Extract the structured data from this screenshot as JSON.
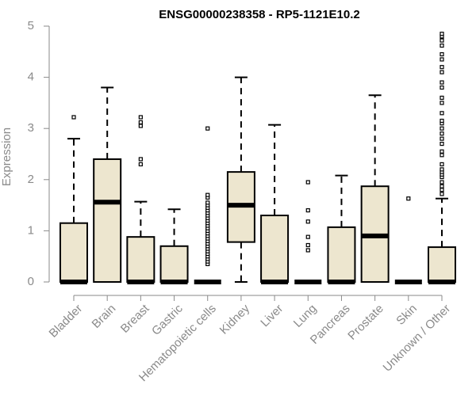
{
  "chart_data": {
    "type": "boxplot",
    "title": "ENSG00000238358 - RP5-1121E10.2",
    "xlabel": "",
    "ylabel": "Expression",
    "ylim": [
      0,
      5
    ],
    "yticks": [
      0,
      1,
      2,
      3,
      4,
      5
    ],
    "grid": false,
    "colors": {
      "box_fill": "#ede6cf",
      "box_stroke": "#000000",
      "axis": "#8a8a8a",
      "title": "#000000"
    },
    "categories": [
      "Bladder",
      "Brain",
      "Breast",
      "Gastric",
      "Hematopoietic cells",
      "Kidney",
      "Liver",
      "Lung",
      "Pancreas",
      "Prostate",
      "Skin",
      "Unknown / Other"
    ],
    "boxes": [
      {
        "category": "Bladder",
        "q1": 0,
        "median": 0,
        "q3": 1.15,
        "whisker_low": 0,
        "whisker_high": 2.8,
        "outliers": [
          3.22
        ]
      },
      {
        "category": "Brain",
        "q1": 0,
        "median": 1.56,
        "q3": 2.4,
        "whisker_low": 0,
        "whisker_high": 3.8,
        "outliers": []
      },
      {
        "category": "Breast",
        "q1": 0,
        "median": 0,
        "q3": 0.88,
        "whisker_low": 0,
        "whisker_high": 1.57,
        "outliers": [
          2.3,
          2.4,
          3.05,
          3.12,
          3.22
        ]
      },
      {
        "category": "Gastric",
        "q1": 0,
        "median": 0,
        "q3": 0.7,
        "whisker_low": 0,
        "whisker_high": 1.42,
        "outliers": []
      },
      {
        "category": "Hematopoietic cells",
        "q1": 0,
        "median": 0,
        "q3": 0,
        "whisker_low": 0,
        "whisker_high": 0,
        "outliers": [
          0.35,
          0.4,
          0.45,
          0.5,
          0.55,
          0.6,
          0.65,
          0.7,
          0.75,
          0.8,
          0.85,
          0.9,
          0.95,
          1.0,
          1.05,
          1.1,
          1.15,
          1.2,
          1.25,
          1.3,
          1.35,
          1.4,
          1.45,
          1.5,
          1.55,
          1.65,
          1.7,
          3.0
        ]
      },
      {
        "category": "Kidney",
        "q1": 0.78,
        "median": 1.5,
        "q3": 2.15,
        "whisker_low": 0,
        "whisker_high": 4.0,
        "outliers": []
      },
      {
        "category": "Liver",
        "q1": 0,
        "median": 0,
        "q3": 1.3,
        "whisker_low": 0,
        "whisker_high": 3.07,
        "outliers": []
      },
      {
        "category": "Lung",
        "q1": 0,
        "median": 0,
        "q3": 0,
        "whisker_low": 0,
        "whisker_high": 0,
        "outliers": [
          0.62,
          0.72,
          0.88,
          1.18,
          1.4,
          1.95
        ]
      },
      {
        "category": "Pancreas",
        "q1": 0,
        "median": 0,
        "q3": 1.07,
        "whisker_low": 0,
        "whisker_high": 2.08,
        "outliers": []
      },
      {
        "category": "Prostate",
        "q1": 0,
        "median": 0.9,
        "q3": 1.87,
        "whisker_low": 0,
        "whisker_high": 3.65,
        "outliers": []
      },
      {
        "category": "Skin",
        "q1": 0,
        "median": 0,
        "q3": 0,
        "whisker_low": 0,
        "whisker_high": 0,
        "outliers": [
          1.63
        ]
      },
      {
        "category": "Unknown / Other",
        "q1": 0,
        "median": 0,
        "q3": 0.68,
        "whisker_low": 0,
        "whisker_high": 1.63,
        "outliers": [
          1.72,
          1.8,
          1.87,
          1.95,
          2.05,
          2.1,
          2.15,
          2.2,
          2.3,
          2.48,
          2.55,
          2.7,
          2.8,
          2.9,
          3.0,
          3.1,
          3.15,
          3.3,
          3.5,
          3.6,
          3.8,
          3.9,
          4.1,
          4.2,
          4.35,
          4.45,
          4.62,
          4.72,
          4.8,
          4.85
        ]
      }
    ]
  }
}
